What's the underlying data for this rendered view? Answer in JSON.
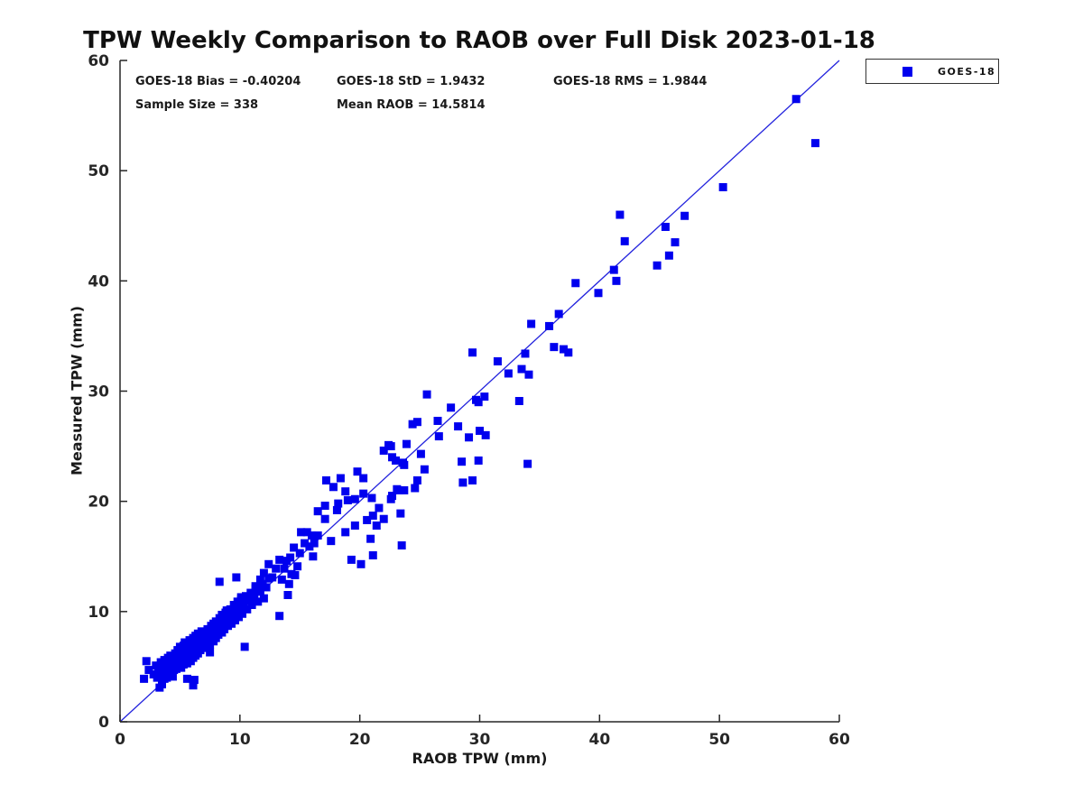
{
  "header": {
    "title": "TPW Weekly Comparison to RAOB over Full Disk 2023-01-18"
  },
  "stats": {
    "bias": "GOES-18 Bias = -0.40204",
    "std": "GOES-18 StD = 1.9432",
    "rms": "GOES-18 RMS = 1.9844",
    "sample_size": "Sample Size = 338",
    "mean_raob": "Mean RAOB = 14.5814"
  },
  "legend": {
    "label": "GOES-18",
    "marker_color": "#0000ee"
  },
  "axes": {
    "xlabel": "RAOB TPW (mm)",
    "ylabel": "Measured TPW (mm)"
  },
  "chart_data": {
    "type": "scatter",
    "title": "TPW Weekly Comparison to RAOB over Full Disk 2023-01-18",
    "xlabel": "RAOB TPW (mm)",
    "ylabel": "Measured TPW (mm)",
    "xlim": [
      0,
      60
    ],
    "ylim": [
      0,
      60
    ],
    "xticks": [
      0,
      10,
      20,
      30,
      40,
      50,
      60
    ],
    "yticks": [
      0,
      10,
      20,
      30,
      40,
      50,
      60
    ],
    "grid": false,
    "legend_position": "outside-top-right",
    "axis_color": "#262626",
    "marker_size_px": 9,
    "reference_line": {
      "from": [
        0,
        0
      ],
      "to": [
        60,
        60
      ],
      "color": "#2222dd"
    },
    "annotations": [
      "GOES-18 Bias = -0.40204",
      "GOES-18 StD = 1.9432",
      "GOES-18 RMS = 1.9844",
      "Sample Size = 338",
      "Mean RAOB = 14.5814"
    ],
    "series": [
      {
        "name": "GOES-18",
        "color": "#0000ee",
        "marker": "filled-square",
        "points": [
          [
            2.2,
            5.5
          ],
          [
            2.0,
            3.9
          ],
          [
            2.4,
            4.7
          ],
          [
            2.8,
            4.3
          ],
          [
            3.0,
            5.1
          ],
          [
            3.1,
            4.0
          ],
          [
            3.2,
            4.6
          ],
          [
            3.3,
            3.1
          ],
          [
            3.4,
            5.4
          ],
          [
            3.5,
            4.2
          ],
          [
            3.5,
            5.0
          ],
          [
            3.5,
            3.4
          ],
          [
            3.6,
            4.7
          ],
          [
            3.7,
            3.9
          ],
          [
            3.7,
            5.6
          ],
          [
            3.8,
            4.4
          ],
          [
            3.9,
            5.1
          ],
          [
            3.9,
            4.0
          ],
          [
            4.0,
            5.8
          ],
          [
            4.0,
            4.6
          ],
          [
            4.1,
            5.3
          ],
          [
            4.1,
            4.2
          ],
          [
            4.2,
            4.9
          ],
          [
            4.2,
            6.0
          ],
          [
            4.3,
            4.5
          ],
          [
            4.3,
            5.5
          ],
          [
            4.4,
            5.0
          ],
          [
            4.4,
            4.1
          ],
          [
            4.5,
            5.9
          ],
          [
            4.5,
            4.7
          ],
          [
            4.6,
            5.2
          ],
          [
            4.6,
            6.2
          ],
          [
            4.7,
            5.5
          ],
          [
            4.7,
            4.8
          ],
          [
            4.8,
            6.5
          ],
          [
            4.8,
            5.8
          ],
          [
            4.9,
            5.1
          ],
          [
            4.9,
            6.0
          ],
          [
            5.0,
            5.4
          ],
          [
            5.0,
            6.8
          ],
          [
            5.1,
            5.9
          ],
          [
            5.1,
            4.9
          ],
          [
            5.2,
            6.3
          ],
          [
            5.2,
            5.6
          ],
          [
            5.3,
            6.9
          ],
          [
            5.3,
            5.2
          ],
          [
            5.4,
            6.1
          ],
          [
            5.4,
            7.2
          ],
          [
            5.5,
            5.7
          ],
          [
            5.5,
            6.6
          ],
          [
            5.6,
            5.3
          ],
          [
            5.6,
            7.0
          ],
          [
            5.7,
            6.4
          ],
          [
            5.7,
            5.9
          ],
          [
            5.8,
            7.4
          ],
          [
            5.8,
            6.1
          ],
          [
            5.9,
            6.8
          ],
          [
            5.9,
            5.5
          ],
          [
            6.0,
            7.1
          ],
          [
            6.0,
            6.3
          ],
          [
            6.1,
            5.8
          ],
          [
            6.1,
            7.6
          ],
          [
            6.2,
            6.6
          ],
          [
            6.2,
            7.2
          ],
          [
            6.3,
            6.0
          ],
          [
            6.3,
            7.8
          ],
          [
            6.4,
            6.9
          ],
          [
            6.4,
            7.4
          ],
          [
            6.5,
            6.2
          ],
          [
            6.5,
            8.0
          ],
          [
            5.6,
            3.9
          ],
          [
            6.1,
            3.3
          ],
          [
            6.6,
            7.1
          ],
          [
            6.7,
            7.7
          ],
          [
            6.7,
            6.5
          ],
          [
            6.8,
            8.2
          ],
          [
            6.8,
            7.0
          ],
          [
            6.9,
            7.5
          ],
          [
            7.0,
            6.7
          ],
          [
            7.0,
            8.0
          ],
          [
            7.1,
            7.3
          ],
          [
            7.2,
            7.9
          ],
          [
            7.2,
            6.9
          ],
          [
            7.3,
            8.4
          ],
          [
            7.4,
            7.6
          ],
          [
            7.5,
            7.0
          ],
          [
            7.5,
            8.1
          ],
          [
            7.6,
            8.7
          ],
          [
            7.7,
            7.8
          ],
          [
            7.8,
            7.3
          ],
          [
            7.8,
            8.9
          ],
          [
            7.9,
            8.2
          ],
          [
            8.0,
            7.6
          ],
          [
            8.0,
            9.1
          ],
          [
            8.1,
            8.5
          ],
          [
            8.2,
            7.9
          ],
          [
            8.3,
            12.7
          ],
          [
            8.3,
            9.4
          ],
          [
            8.4,
            8.8
          ],
          [
            8.5,
            8.1
          ],
          [
            8.5,
            9.7
          ],
          [
            8.6,
            9.0
          ],
          [
            8.7,
            8.4
          ],
          [
            8.8,
            9.9
          ],
          [
            8.9,
            9.3
          ],
          [
            9.0,
            8.7
          ],
          [
            7.5,
            6.3
          ],
          [
            8.9,
            10.1
          ],
          [
            6.2,
            3.8
          ],
          [
            9.1,
            9.6
          ],
          [
            9.2,
            10.2
          ],
          [
            9.3,
            8.9
          ],
          [
            9.4,
            9.9
          ],
          [
            9.5,
            10.6
          ],
          [
            9.6,
            9.2
          ],
          [
            9.7,
            13.1
          ],
          [
            9.7,
            10.0
          ],
          [
            9.8,
            10.9
          ],
          [
            9.9,
            9.5
          ],
          [
            10.0,
            10.4
          ],
          [
            10.1,
            11.1
          ],
          [
            10.2,
            9.8
          ],
          [
            10.3,
            10.7
          ],
          [
            10.4,
            6.8
          ],
          [
            10.5,
            11.4
          ],
          [
            10.6,
            10.2
          ],
          [
            10.7,
            11.0
          ],
          [
            10.9,
            11.7
          ],
          [
            11.0,
            10.6
          ],
          [
            11.2,
            11.4
          ],
          [
            11.3,
            12.1
          ],
          [
            11.5,
            10.9
          ],
          [
            11.7,
            11.8
          ],
          [
            11.9,
            12.5
          ],
          [
            12.0,
            11.2
          ],
          [
            12.2,
            12.2
          ],
          [
            12.4,
            13.0
          ],
          [
            10.1,
            11.3
          ],
          [
            10.9,
            11.3
          ],
          [
            12.4,
            14.3
          ],
          [
            12.7,
            13.1
          ],
          [
            13.0,
            13.9
          ],
          [
            13.3,
            14.7
          ],
          [
            13.3,
            9.6
          ],
          [
            13.5,
            12.9
          ],
          [
            13.7,
            13.9
          ],
          [
            13.9,
            14.6
          ],
          [
            14.0,
            11.5
          ],
          [
            14.1,
            12.5
          ],
          [
            14.3,
            13.4
          ],
          [
            14.6,
            13.3
          ],
          [
            14.8,
            14.1
          ],
          [
            15.0,
            15.3
          ],
          [
            12.0,
            13.5
          ],
          [
            11.7,
            12.9
          ],
          [
            11.3,
            12.3
          ],
          [
            14.5,
            15.8
          ],
          [
            14.2,
            14.9
          ],
          [
            15.1,
            17.2
          ],
          [
            15.4,
            16.2
          ],
          [
            15.6,
            17.2
          ],
          [
            15.8,
            15.9
          ],
          [
            16.0,
            16.9
          ],
          [
            16.1,
            15.0
          ],
          [
            16.2,
            16.2
          ],
          [
            16.5,
            19.1
          ],
          [
            17.1,
            19.6
          ],
          [
            17.1,
            18.4
          ],
          [
            17.2,
            21.9
          ],
          [
            17.6,
            16.4
          ],
          [
            17.8,
            21.3
          ],
          [
            18.1,
            19.2
          ],
          [
            18.2,
            19.8
          ],
          [
            18.4,
            22.1
          ],
          [
            18.8,
            20.9
          ],
          [
            18.8,
            17.2
          ],
          [
            19.0,
            20.1
          ],
          [
            19.3,
            14.7
          ],
          [
            19.6,
            17.8
          ],
          [
            19.6,
            20.2
          ],
          [
            19.8,
            22.7
          ],
          [
            16.5,
            16.9
          ],
          [
            20.1,
            14.3
          ],
          [
            20.3,
            20.7
          ],
          [
            20.3,
            22.1
          ],
          [
            20.6,
            18.3
          ],
          [
            20.9,
            16.6
          ],
          [
            21.0,
            20.3
          ],
          [
            21.1,
            15.1
          ],
          [
            21.1,
            18.7
          ],
          [
            21.4,
            17.8
          ],
          [
            21.6,
            19.4
          ],
          [
            22.0,
            24.6
          ],
          [
            22.0,
            18.4
          ],
          [
            22.4,
            25.1
          ],
          [
            22.6,
            20.2
          ],
          [
            22.6,
            25.0
          ],
          [
            22.7,
            24.0
          ],
          [
            22.7,
            20.5
          ],
          [
            23.0,
            23.7
          ],
          [
            23.1,
            21.1
          ],
          [
            23.3,
            21.0
          ],
          [
            23.4,
            18.9
          ],
          [
            23.5,
            16.0
          ],
          [
            23.6,
            23.5
          ],
          [
            23.7,
            23.3
          ],
          [
            23.7,
            21.0
          ],
          [
            23.9,
            25.2
          ],
          [
            24.4,
            27.0
          ],
          [
            24.6,
            21.2
          ],
          [
            24.8,
            27.2
          ],
          [
            24.8,
            21.9
          ],
          [
            25.1,
            24.3
          ],
          [
            25.4,
            22.9
          ],
          [
            25.6,
            29.7
          ],
          [
            26.5,
            27.3
          ],
          [
            26.6,
            25.9
          ],
          [
            27.6,
            28.5
          ],
          [
            28.2,
            26.8
          ],
          [
            28.5,
            23.6
          ],
          [
            28.6,
            21.7
          ],
          [
            29.1,
            25.8
          ],
          [
            29.4,
            33.5
          ],
          [
            29.4,
            21.9
          ],
          [
            29.7,
            29.2
          ],
          [
            29.9,
            23.7
          ],
          [
            29.9,
            29.0
          ],
          [
            30.0,
            26.4
          ],
          [
            30.4,
            29.5
          ],
          [
            30.5,
            26.0
          ],
          [
            31.5,
            32.7
          ],
          [
            32.4,
            31.6
          ],
          [
            33.3,
            29.1
          ],
          [
            33.5,
            32.0
          ],
          [
            33.8,
            33.4
          ],
          [
            34.0,
            23.4
          ],
          [
            34.1,
            31.5
          ],
          [
            34.3,
            36.1
          ],
          [
            35.8,
            35.9
          ],
          [
            36.2,
            34.0
          ],
          [
            36.6,
            37.0
          ],
          [
            37.0,
            33.8
          ],
          [
            37.4,
            33.5
          ],
          [
            38.0,
            39.8
          ],
          [
            39.9,
            38.9
          ],
          [
            41.2,
            41.0
          ],
          [
            41.4,
            40.0
          ],
          [
            41.7,
            46.0
          ],
          [
            42.1,
            43.6
          ],
          [
            44.8,
            41.4
          ],
          [
            45.5,
            44.9
          ],
          [
            45.8,
            42.3
          ],
          [
            46.3,
            43.5
          ],
          [
            47.1,
            45.9
          ],
          [
            50.3,
            48.5
          ],
          [
            56.4,
            56.5
          ],
          [
            58.0,
            52.5
          ]
        ]
      }
    ]
  }
}
